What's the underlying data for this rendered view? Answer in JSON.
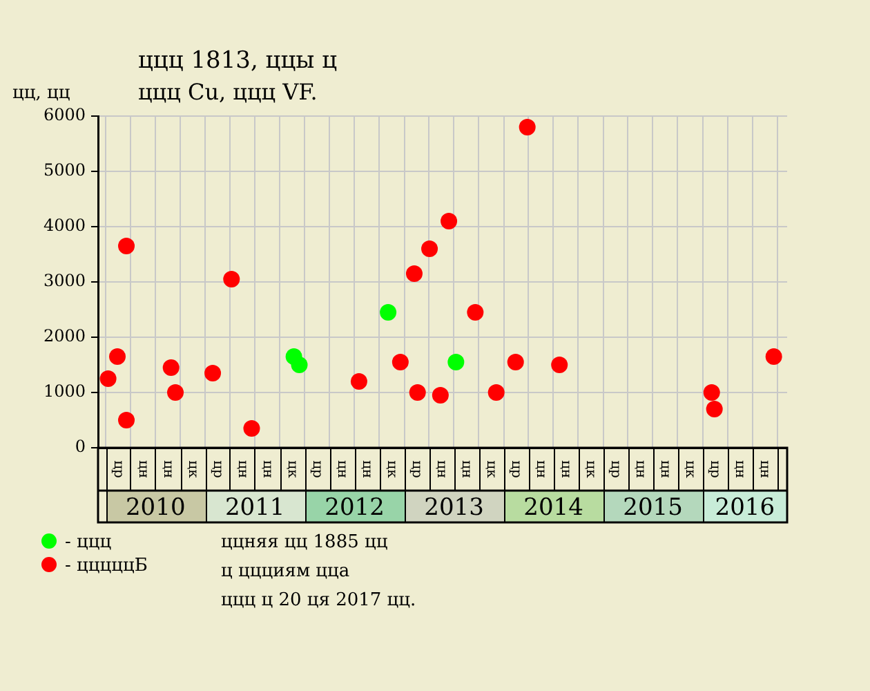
{
  "chart_data": {
    "type": "scatter",
    "title": "ццц 1813, ццы ц",
    "subtitle": "ццц Cu, ццц VF.",
    "ylabel": "цц, цц",
    "series": [
      {
        "name": "- ццц",
        "color": "#00ff00",
        "x": [
          "2011-11-22",
          "2011-12-12",
          "2012-11-02",
          "2013-07-09"
        ],
        "values": [
          1650,
          1500,
          2450,
          1550
        ]
      },
      {
        "name": "- цццццБ",
        "color": "#ff0000",
        "x": [
          "2010-01-09",
          "2010-02-12",
          "2010-03-17",
          "2010-03-17",
          "2010-08-28",
          "2010-09-13",
          "2011-01-28",
          "2011-04-07",
          "2011-06-20",
          "2012-07-18",
          "2012-12-17",
          "2013-02-06",
          "2013-02-18",
          "2013-04-03",
          "2013-05-13",
          "2013-06-13",
          "2013-09-18",
          "2013-12-04",
          "2014-02-13",
          "2014-03-28",
          "2014-07-24",
          "2016-02-03",
          "2016-02-13",
          "2016-09-18"
        ],
        "values": [
          1250,
          1650,
          3650,
          500,
          1450,
          1000,
          1350,
          3050,
          350,
          1200,
          1550,
          3150,
          1000,
          3600,
          950,
          4100,
          2450,
          1000,
          1550,
          5800,
          1500,
          1000,
          700,
          1650
        ]
      }
    ],
    "xlim": [
      "2009-12-03",
      "2016-11-06"
    ],
    "xticks": [
      {
        "value": "2010-01-01",
        "label": null
      },
      {
        "value": "2010-04-01",
        "label": null
      },
      {
        "value": "2010-07-01",
        "label": null
      },
      {
        "value": "2010-07-02",
        "label": "2010"
      },
      {
        "value": "2010-10-01",
        "label": null
      },
      {
        "value": "2011-01-01",
        "label": null
      },
      {
        "value": "2011-04-01",
        "label": null
      },
      {
        "value": "2011-07-01",
        "label": null
      },
      {
        "value": "2011-07-02",
        "label": "2011"
      },
      {
        "value": "2011-10-01",
        "label": null
      },
      {
        "value": "2012-01-01",
        "label": null
      },
      {
        "value": "2012-04-01",
        "label": null
      },
      {
        "value": "2012-07-01",
        "label": null
      },
      {
        "value": "2012-07-02",
        "label": "2012"
      },
      {
        "value": "2012-10-01",
        "label": null
      },
      {
        "value": "2013-01-01",
        "label": null
      },
      {
        "value": "2013-04-01",
        "label": null
      },
      {
        "value": "2013-07-01",
        "label": null
      },
      {
        "value": "2013-07-02",
        "label": "2013"
      },
      {
        "value": "2013-10-01",
        "label": null
      },
      {
        "value": "2014-01-01",
        "label": null
      },
      {
        "value": "2014-04-01",
        "label": null
      },
      {
        "value": "2014-07-01",
        "label": null
      },
      {
        "value": "2014-07-02",
        "label": "2014"
      },
      {
        "value": "2014-10-01",
        "label": null
      },
      {
        "value": "2015-01-01",
        "label": null
      },
      {
        "value": "2015-04-01",
        "label": null
      },
      {
        "value": "2015-07-01",
        "label": null
      },
      {
        "value": "2015-07-02",
        "label": "2015"
      },
      {
        "value": "2015-10-01",
        "label": null
      },
      {
        "value": "2016-01-01",
        "label": null
      },
      {
        "value": "2016-04-01",
        "label": null
      },
      {
        "value": "2016-06-04",
        "label": "2016"
      },
      {
        "value": "2016-07-01",
        "label": null
      },
      {
        "value": "2016-10-01",
        "label": null
      }
    ],
    "ylim": [
      0,
      6000
    ],
    "yticks": [
      0,
      1000,
      2000,
      3000,
      4000,
      5000,
      6000
    ],
    "annotations": [
      "ццняя цц 1885 цц",
      "ц ццциям цца",
      "ццц ц 20 ця 2017 цц.",
      "цр",
      "цн",
      "цн",
      "цк",
      "цр",
      "цн",
      "цн",
      "цк",
      "цр",
      "цн",
      "цн",
      "цк",
      "цр",
      "цн",
      "цн",
      "цк",
      "цр",
      "цн",
      "цн",
      "цк",
      "цр",
      "цн",
      "цн",
      "цк",
      "цр",
      "цн",
      "цн"
    ],
    "grid": true,
    "legend": "bottom left",
    "marker": "circle"
  }
}
